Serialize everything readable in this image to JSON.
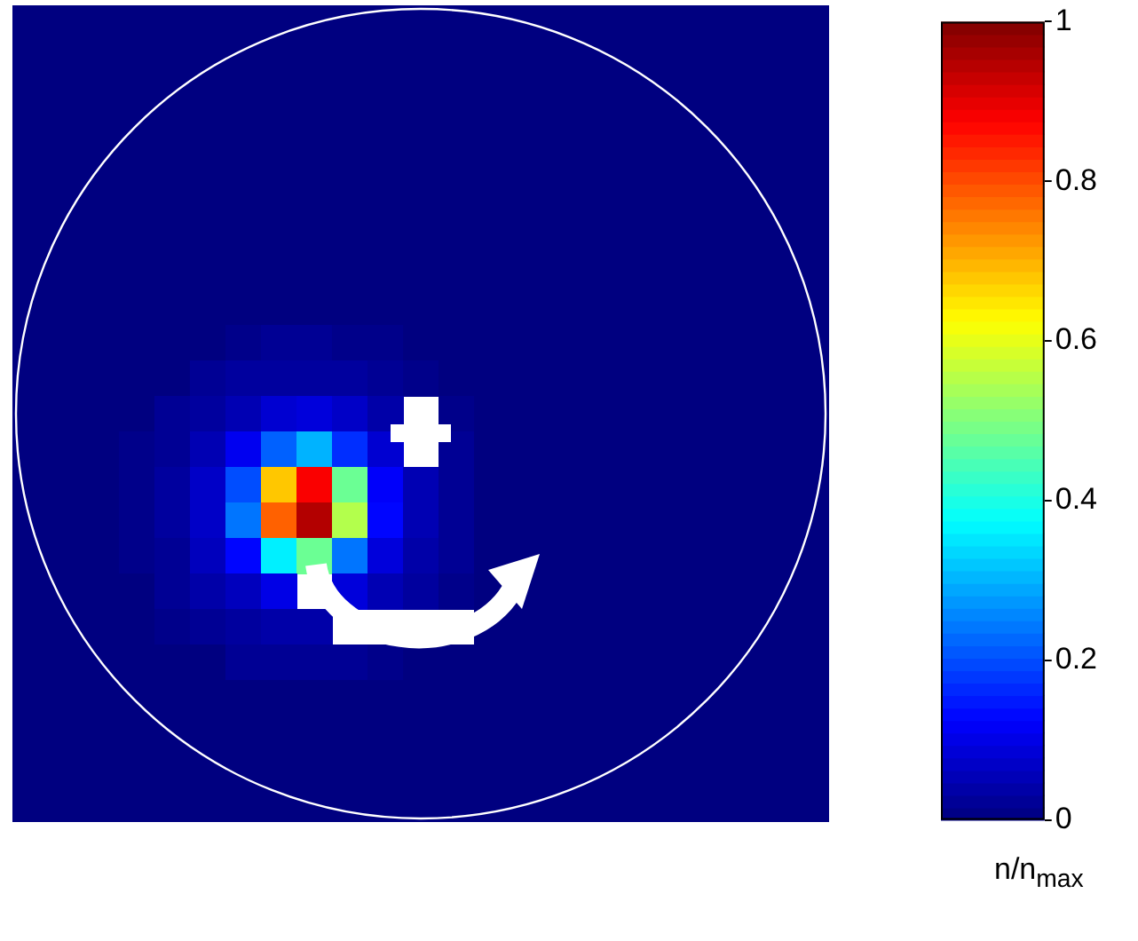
{
  "chart_data": {
    "type": "heatmap",
    "clabel": "n/n$_{max}$",
    "clim": [
      0,
      1
    ],
    "cticks": [
      0,
      0.2,
      0.4,
      0.6,
      0.8,
      1
    ],
    "categories": [
      null,
      null,
      null,
      null,
      null,
      null,
      null,
      null,
      null,
      null,
      null,
      null,
      null,
      null,
      null,
      null,
      null,
      null,
      null,
      null,
      null,
      null,
      null
    ],
    "y_categories": [
      null,
      null,
      null,
      null,
      null,
      null,
      null,
      null,
      null,
      null,
      null,
      null,
      null,
      null,
      null,
      null,
      null,
      null,
      null,
      null,
      null,
      null,
      null
    ],
    "cells": [
      [
        0,
        0,
        0,
        0,
        0,
        0,
        0,
        0,
        0,
        0,
        0,
        0,
        0,
        0,
        0,
        0,
        0,
        0,
        0,
        0,
        0,
        0,
        0
      ],
      [
        0,
        0,
        0,
        0,
        0,
        0,
        0,
        0,
        0,
        0,
        0,
        0,
        0,
        0,
        0,
        0,
        0,
        0,
        0,
        0,
        0,
        0,
        0
      ],
      [
        0,
        0,
        0,
        0,
        0,
        0,
        0,
        0,
        0,
        0,
        0,
        0,
        0,
        0,
        0,
        0,
        0,
        0,
        0,
        0,
        0,
        0,
        0
      ],
      [
        0,
        0,
        0,
        0,
        0,
        0,
        0,
        0,
        0,
        0,
        0,
        0,
        0,
        0,
        0,
        0,
        0,
        0,
        0,
        0,
        0,
        0,
        0
      ],
      [
        0,
        0,
        0,
        0,
        0,
        0,
        0,
        0,
        0,
        0,
        0,
        0,
        0,
        0,
        0,
        0,
        0,
        0,
        0,
        0,
        0,
        0,
        0
      ],
      [
        0,
        0,
        0,
        0,
        0,
        0,
        0,
        0,
        0,
        0,
        0,
        0,
        0,
        0,
        0,
        0,
        0,
        0,
        0,
        0,
        0,
        0,
        0
      ],
      [
        0,
        0,
        0,
        0,
        0,
        0,
        0,
        0,
        0,
        0,
        0,
        0,
        0,
        0,
        0,
        0,
        0,
        0,
        0,
        0,
        0,
        0,
        0
      ],
      [
        0,
        0,
        0,
        0,
        0,
        0,
        0,
        0,
        0,
        0,
        0,
        0,
        0,
        0,
        0,
        0,
        0,
        0,
        0,
        0,
        0,
        0,
        0
      ],
      [
        0,
        0,
        0,
        0,
        0,
        0,
        0,
        0,
        0,
        0,
        0,
        0,
        0,
        0,
        0,
        0,
        0,
        0,
        0,
        0,
        0,
        0,
        0
      ],
      [
        0,
        0,
        0,
        0,
        0,
        0,
        0.01,
        0.02,
        0.02,
        0.01,
        0.01,
        0,
        0,
        0,
        0,
        0,
        0,
        0,
        0,
        0,
        0,
        0,
        0
      ],
      [
        0,
        0,
        0,
        0,
        0,
        0.02,
        0.03,
        0.03,
        0.03,
        0.03,
        0.02,
        0.01,
        0,
        0,
        0,
        0,
        0,
        0,
        0,
        0,
        0,
        0,
        0
      ],
      [
        0,
        0,
        0,
        0,
        0.02,
        0.03,
        0.05,
        0.08,
        0.09,
        0.07,
        0.04,
        null,
        0.01,
        0,
        0,
        0,
        0,
        0,
        0,
        0,
        0,
        0,
        0
      ],
      [
        0,
        0,
        0,
        0.01,
        0.02,
        0.05,
        0.11,
        0.22,
        0.3,
        0.17,
        0.08,
        null,
        0.02,
        0,
        0,
        0,
        0,
        0,
        0,
        0,
        0,
        0,
        0
      ],
      [
        0,
        0,
        0,
        0.01,
        0.03,
        0.07,
        0.2,
        0.68,
        0.88,
        0.48,
        0.12,
        0.05,
        0.02,
        0,
        0,
        0,
        0,
        0,
        0,
        0,
        0,
        0,
        0
      ],
      [
        0,
        0,
        0,
        0.01,
        0.03,
        0.07,
        0.24,
        0.78,
        0.95,
        0.55,
        0.13,
        0.05,
        0.02,
        0,
        0,
        0,
        0,
        0,
        0,
        0,
        0,
        0,
        0
      ],
      [
        0,
        0,
        0,
        0.01,
        0.02,
        0.06,
        0.13,
        0.36,
        0.48,
        0.24,
        0.09,
        0.04,
        0.02,
        0,
        0,
        0,
        0,
        0,
        0,
        0,
        0,
        0,
        0
      ],
      [
        0,
        0,
        0,
        0,
        0.02,
        0.04,
        0.06,
        0.1,
        null,
        0.09,
        0.05,
        0.03,
        0.01,
        0,
        0,
        0,
        0,
        0,
        0,
        0,
        0,
        0,
        0
      ],
      [
        0,
        0,
        0,
        0,
        0.01,
        0.02,
        0.03,
        0.04,
        0.04,
        null,
        null,
        null,
        null,
        0,
        0,
        0,
        0,
        0,
        0,
        0,
        0,
        0,
        0
      ],
      [
        0,
        0,
        0,
        0,
        0,
        0,
        0.02,
        0.02,
        0.02,
        0.02,
        0.01,
        0,
        0,
        0,
        0,
        0,
        0,
        0,
        0,
        0,
        0,
        0,
        0
      ],
      [
        0,
        0,
        0,
        0,
        0,
        0,
        0,
        0,
        0,
        0,
        0,
        0,
        0,
        0,
        0,
        0,
        0,
        0,
        0,
        0,
        0,
        0,
        0
      ],
      [
        0,
        0,
        0,
        0,
        0,
        0,
        0,
        0,
        0,
        0,
        0,
        0,
        0,
        0,
        0,
        0,
        0,
        0,
        0,
        0,
        0,
        0,
        0
      ],
      [
        0,
        0,
        0,
        0,
        0,
        0,
        0,
        0,
        0,
        0,
        0,
        0,
        0,
        0,
        0,
        0,
        0,
        0,
        0,
        0,
        0,
        0,
        0
      ],
      [
        0,
        0,
        0,
        0,
        0,
        0,
        0,
        0,
        0,
        0,
        0,
        0,
        0,
        0,
        0,
        0,
        0,
        0,
        0,
        0,
        0,
        0,
        0
      ]
    ]
  }
}
